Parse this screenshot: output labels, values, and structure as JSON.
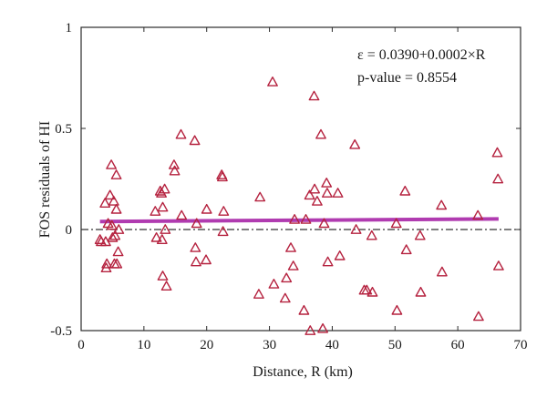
{
  "chart_data": {
    "type": "scatter",
    "xlabel": "Distance, R (km)",
    "ylabel": "FOS residuals of HI",
    "xlim": [
      0,
      70
    ],
    "ylim": [
      -0.5,
      1
    ],
    "xticks": [
      0,
      10,
      20,
      30,
      40,
      50,
      60,
      70
    ],
    "yticks": [
      -0.5,
      0,
      0.5,
      1
    ],
    "x_tick_labels": [
      "0",
      "10",
      "20",
      "30",
      "40",
      "50",
      "60",
      "70"
    ],
    "y_tick_labels": [
      "-0.5",
      "0",
      "0.5",
      "1"
    ],
    "grid": false,
    "zero_line": {
      "y": 0,
      "style": "dash-dot",
      "color": "#333333"
    },
    "marker": {
      "shape": "triangle-open",
      "color": "#b5223f"
    },
    "fit_line": {
      "intercept": 0.039,
      "slope": 0.0002,
      "x_range": [
        3,
        66.5
      ],
      "color": "#b03bb0"
    },
    "annotations": [
      "ε = 0.0390+0.0002×R",
      "p-value = 0.8554"
    ],
    "points": [
      {
        "x": 3.0,
        "y": -0.05
      },
      {
        "x": 3.2,
        "y": -0.06
      },
      {
        "x": 3.8,
        "y": 0.13
      },
      {
        "x": 3.9,
        "y": -0.06
      },
      {
        "x": 4.0,
        "y": -0.19
      },
      {
        "x": 4.1,
        "y": -0.17
      },
      {
        "x": 4.3,
        "y": 0.03
      },
      {
        "x": 4.6,
        "y": 0.17
      },
      {
        "x": 4.8,
        "y": 0.32
      },
      {
        "x": 4.9,
        "y": 0.02
      },
      {
        "x": 5.0,
        "y": -0.04
      },
      {
        "x": 5.2,
        "y": 0.14
      },
      {
        "x": 5.3,
        "y": -0.17
      },
      {
        "x": 5.4,
        "y": -0.03
      },
      {
        "x": 5.6,
        "y": 0.27
      },
      {
        "x": 5.6,
        "y": 0.1
      },
      {
        "x": 5.7,
        "y": -0.17
      },
      {
        "x": 5.9,
        "y": -0.11
      },
      {
        "x": 6.0,
        "y": 0.0
      },
      {
        "x": 11.8,
        "y": 0.09
      },
      {
        "x": 12.0,
        "y": -0.04
      },
      {
        "x": 12.6,
        "y": 0.19
      },
      {
        "x": 12.8,
        "y": 0.18
      },
      {
        "x": 12.9,
        "y": -0.05
      },
      {
        "x": 13.0,
        "y": 0.11
      },
      {
        "x": 13.0,
        "y": -0.23
      },
      {
        "x": 13.3,
        "y": 0.2
      },
      {
        "x": 13.4,
        "y": 0.0
      },
      {
        "x": 13.6,
        "y": -0.28
      },
      {
        "x": 14.8,
        "y": 0.32
      },
      {
        "x": 14.9,
        "y": 0.29
      },
      {
        "x": 15.9,
        "y": 0.47
      },
      {
        "x": 16.0,
        "y": 0.07
      },
      {
        "x": 18.1,
        "y": 0.44
      },
      {
        "x": 18.2,
        "y": -0.09
      },
      {
        "x": 18.3,
        "y": -0.16
      },
      {
        "x": 18.4,
        "y": 0.03
      },
      {
        "x": 19.9,
        "y": -0.15
      },
      {
        "x": 20.0,
        "y": 0.1
      },
      {
        "x": 22.4,
        "y": 0.27
      },
      {
        "x": 22.5,
        "y": 0.26
      },
      {
        "x": 22.6,
        "y": -0.01
      },
      {
        "x": 22.7,
        "y": 0.09
      },
      {
        "x": 28.3,
        "y": -0.32
      },
      {
        "x": 28.5,
        "y": 0.16
      },
      {
        "x": 30.5,
        "y": 0.73
      },
      {
        "x": 30.7,
        "y": -0.27
      },
      {
        "x": 32.5,
        "y": -0.34
      },
      {
        "x": 32.7,
        "y": -0.24
      },
      {
        "x": 33.4,
        "y": -0.09
      },
      {
        "x": 33.8,
        "y": -0.18
      },
      {
        "x": 34.0,
        "y": 0.05
      },
      {
        "x": 35.5,
        "y": -0.4
      },
      {
        "x": 35.8,
        "y": 0.05
      },
      {
        "x": 36.4,
        "y": 0.17
      },
      {
        "x": 36.5,
        "y": -0.5
      },
      {
        "x": 37.1,
        "y": 0.66
      },
      {
        "x": 37.2,
        "y": 0.2
      },
      {
        "x": 37.6,
        "y": 0.14
      },
      {
        "x": 38.2,
        "y": 0.47
      },
      {
        "x": 38.5,
        "y": -0.49
      },
      {
        "x": 38.7,
        "y": 0.03
      },
      {
        "x": 39.1,
        "y": 0.23
      },
      {
        "x": 39.2,
        "y": 0.18
      },
      {
        "x": 39.3,
        "y": -0.16
      },
      {
        "x": 40.9,
        "y": 0.18
      },
      {
        "x": 41.2,
        "y": -0.13
      },
      {
        "x": 43.6,
        "y": 0.42
      },
      {
        "x": 43.8,
        "y": 0.0
      },
      {
        "x": 45.1,
        "y": -0.3
      },
      {
        "x": 45.5,
        "y": -0.3
      },
      {
        "x": 46.3,
        "y": -0.03
      },
      {
        "x": 46.4,
        "y": -0.31
      },
      {
        "x": 50.2,
        "y": 0.03
      },
      {
        "x": 50.3,
        "y": -0.4
      },
      {
        "x": 51.6,
        "y": 0.19
      },
      {
        "x": 51.8,
        "y": -0.1
      },
      {
        "x": 54.0,
        "y": -0.03
      },
      {
        "x": 54.1,
        "y": -0.31
      },
      {
        "x": 57.4,
        "y": 0.12
      },
      {
        "x": 57.5,
        "y": -0.21
      },
      {
        "x": 63.2,
        "y": 0.07
      },
      {
        "x": 63.3,
        "y": -0.43
      },
      {
        "x": 66.3,
        "y": 0.38
      },
      {
        "x": 66.4,
        "y": 0.25
      },
      {
        "x": 66.5,
        "y": -0.18
      }
    ]
  }
}
